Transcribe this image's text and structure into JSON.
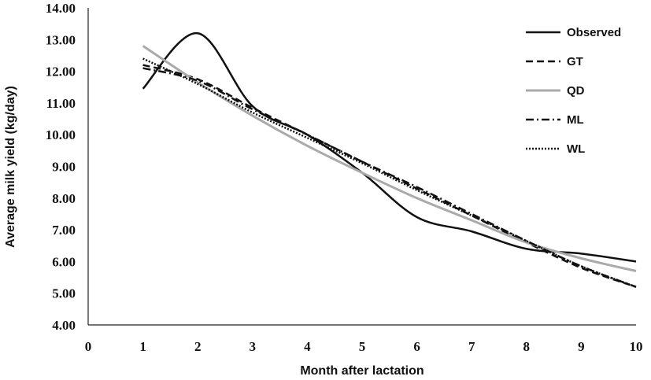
{
  "chart_data": {
    "type": "line",
    "xlabel": "Month after lactation",
    "ylabel": "Average milk yield (kg/day)",
    "xlim": [
      0,
      10
    ],
    "ylim": [
      4,
      14
    ],
    "xticks": [
      "0",
      "1",
      "2",
      "3",
      "4",
      "5",
      "6",
      "7",
      "8",
      "9",
      "10"
    ],
    "yticks": [
      "4.00",
      "5.00",
      "6.00",
      "7.00",
      "8.00",
      "9.00",
      "10.00",
      "11.00",
      "12.00",
      "13.00",
      "14.00"
    ],
    "grid": false,
    "legend_position": "top-right",
    "x": [
      1,
      2,
      3,
      4,
      5,
      6,
      7,
      8,
      9,
      10
    ],
    "series": [
      {
        "name": "Observed",
        "color": "#111111",
        "dash": "solid",
        "values": [
          11.45,
          13.2,
          10.9,
          10.0,
          8.8,
          7.4,
          6.95,
          6.4,
          6.25,
          6.0
        ]
      },
      {
        "name": "GT",
        "color": "#111111",
        "dash": "dash",
        "values": [
          12.2,
          11.75,
          10.85,
          10.0,
          9.15,
          8.3,
          7.45,
          6.6,
          5.8,
          5.2
        ]
      },
      {
        "name": "QD",
        "color": "#aaaaaa",
        "dash": "solid",
        "values": [
          12.8,
          11.65,
          10.6,
          9.65,
          8.8,
          8.0,
          7.3,
          6.6,
          6.1,
          5.7
        ]
      },
      {
        "name": "ML",
        "color": "#111111",
        "dash": "dashdot",
        "values": [
          12.1,
          11.7,
          10.8,
          10.0,
          9.15,
          8.35,
          7.5,
          6.65,
          5.85,
          5.2
        ]
      },
      {
        "name": "WL",
        "color": "#111111",
        "dash": "dot",
        "values": [
          12.4,
          11.6,
          10.7,
          9.9,
          9.1,
          8.25,
          7.45,
          6.65,
          5.85,
          5.2
        ]
      }
    ]
  }
}
